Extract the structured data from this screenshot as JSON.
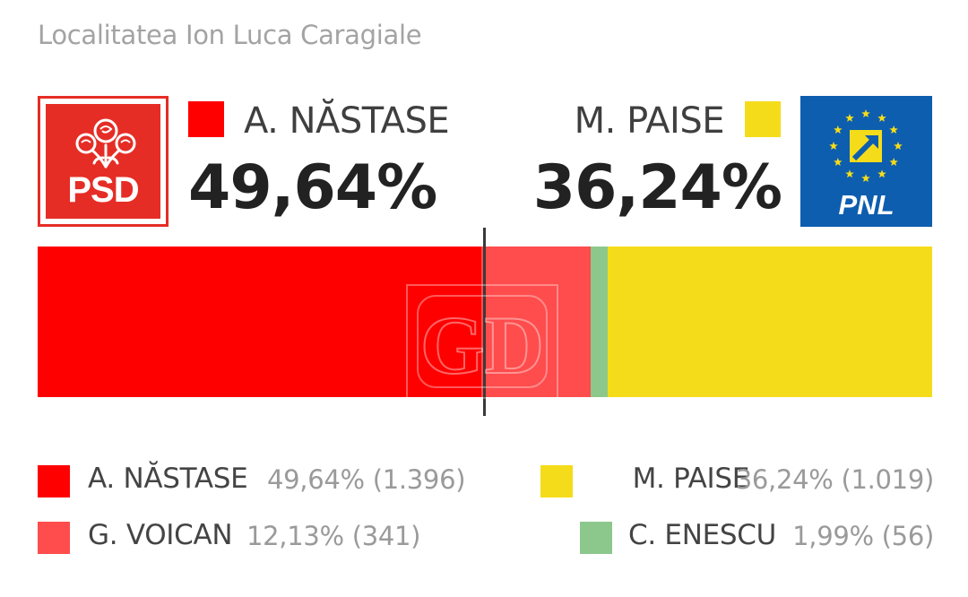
{
  "title": "Localitatea Ion Luca Caragiale",
  "logos": {
    "left": {
      "text": "PSD",
      "icon": "rose-icon",
      "color": "#e52d26"
    },
    "right": {
      "text": "PNL",
      "icon": "eu-stars-arrow-icon",
      "color": "#0d5eaf"
    }
  },
  "headline": {
    "left": {
      "name": "A. NĂSTASE",
      "percent": "49,64%",
      "color": "#ff0000"
    },
    "right": {
      "name": "M. PAISE",
      "percent": "36,24%",
      "color": "#f5dc1b"
    }
  },
  "watermark": "GD",
  "chart_data": {
    "type": "bar",
    "orientation": "horizontal-stacked",
    "series": [
      {
        "name": "A. NĂSTASE",
        "percent": 49.64,
        "percent_label": "49,64%",
        "votes": 1396,
        "votes_label": "(1.396)",
        "color": "#ff0000"
      },
      {
        "name": "G. VOICAN",
        "percent": 12.13,
        "percent_label": "12,13%",
        "votes": 341,
        "votes_label": "(341)",
        "color": "#ff4c4c"
      },
      {
        "name": "C. ENESCU",
        "percent": 1.99,
        "percent_label": "1,99%",
        "votes": 56,
        "votes_label": "(56)",
        "color": "#8cc88c"
      },
      {
        "name": "M. PAISE",
        "percent": 36.24,
        "percent_label": "36,24%",
        "votes": 1019,
        "votes_label": "(1.019)",
        "color": "#f5dc1b"
      }
    ],
    "midpoint": 50
  },
  "legend": [
    {
      "name": "A. NĂSTASE",
      "value": "49,64% (1.396)",
      "color": "#ff0000"
    },
    {
      "name": "M. PAISE",
      "value": "36,24% (1.019)",
      "color": "#f5dc1b"
    },
    {
      "name": "G. VOICAN",
      "value": "12,13% (341)",
      "color": "#ff4c4c"
    },
    {
      "name": "C. ENESCU",
      "value": "1,99% (56)",
      "color": "#8cc88c"
    }
  ]
}
